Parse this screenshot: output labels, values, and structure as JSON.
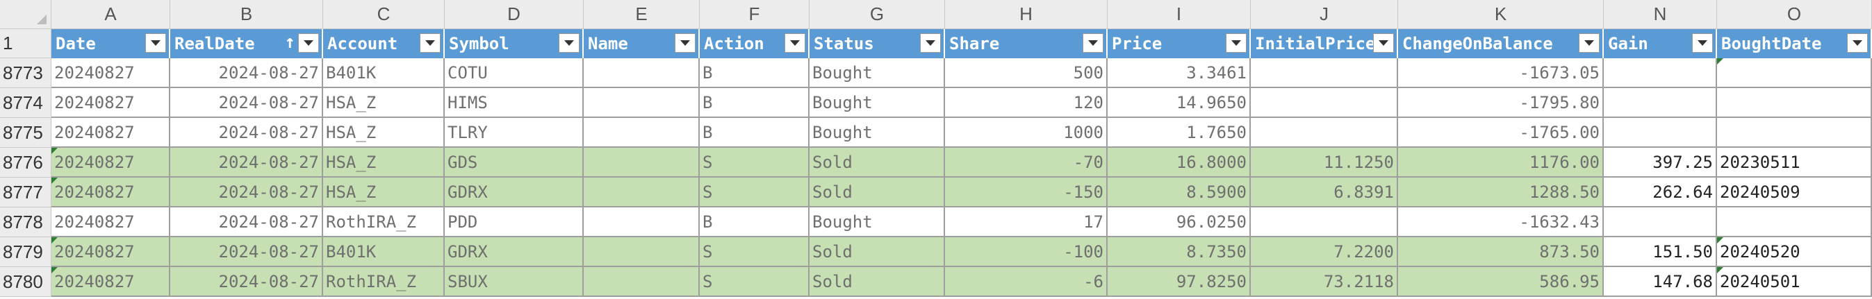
{
  "column_letters": [
    "A",
    "B",
    "C",
    "D",
    "E",
    "F",
    "G",
    "H",
    "I",
    "J",
    "K",
    "N",
    "O"
  ],
  "header_row_number": "1",
  "headers": [
    "Date",
    "RealDate",
    "Account",
    "Symbol",
    "Name",
    "Action",
    "Status",
    "Share",
    "Price",
    "InitialPrice",
    "ChangeOnBalance",
    "Gain",
    "BoughtDate"
  ],
  "sort_indicator": "↑",
  "rows": [
    {
      "num": "8773",
      "cells": [
        "20240827",
        "2024-08-27",
        "B401K",
        "COTU",
        "",
        "B",
        "Bought",
        "500",
        "3.3461",
        "",
        "-1673.05",
        "",
        ""
      ],
      "green": false
    },
    {
      "num": "8774",
      "cells": [
        "20240827",
        "2024-08-27",
        "HSA_Z",
        "HIMS",
        "",
        "B",
        "Bought",
        "120",
        "14.9650",
        "",
        "-1795.80",
        "",
        ""
      ],
      "green": false
    },
    {
      "num": "8775",
      "cells": [
        "20240827",
        "2024-08-27",
        "HSA_Z",
        "TLRY",
        "",
        "B",
        "Bought",
        "1000",
        "1.7650",
        "",
        "-1765.00",
        "",
        ""
      ],
      "green": false
    },
    {
      "num": "8776",
      "cells": [
        "20240827",
        "2024-08-27",
        "HSA_Z",
        "GDS",
        "",
        "S",
        "Sold",
        "-70",
        "16.8000",
        "11.1250",
        "1176.00",
        "397.25",
        "20230511"
      ],
      "green": true
    },
    {
      "num": "8777",
      "cells": [
        "20240827",
        "2024-08-27",
        "HSA_Z",
        "GDRX",
        "",
        "S",
        "Sold",
        "-150",
        "8.5900",
        "6.8391",
        "1288.50",
        "262.64",
        "20240509"
      ],
      "green": true
    },
    {
      "num": "8778",
      "cells": [
        "20240827",
        "2024-08-27",
        "RothIRA_Z",
        "PDD",
        "",
        "B",
        "Bought",
        "17",
        "96.0250",
        "",
        "-1632.43",
        "",
        ""
      ],
      "green": false
    },
    {
      "num": "8779",
      "cells": [
        "20240827",
        "2024-08-27",
        "B401K",
        "GDRX",
        "",
        "S",
        "Sold",
        "-100",
        "8.7350",
        "7.2200",
        "873.50",
        "151.50",
        "20240520"
      ],
      "green": true
    },
    {
      "num": "8780",
      "cells": [
        "20240827",
        "2024-08-27",
        "RothIRA_Z",
        "SBUX",
        "",
        "S",
        "Sold",
        "-6",
        "97.8250",
        "73.2118",
        "586.95",
        "147.68",
        "20240501"
      ],
      "green": true
    }
  ],
  "colors": {
    "header_blue": "#5b9bd5",
    "sold_green": "#c6e0b4",
    "grid_gray": "#9e9e9e"
  }
}
